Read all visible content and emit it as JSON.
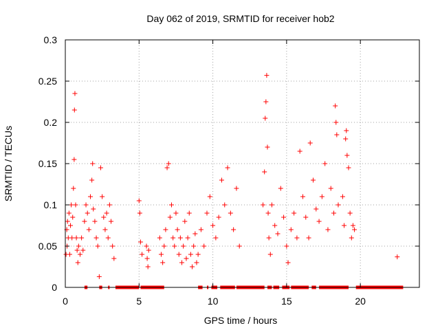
{
  "chart_data": {
    "type": "scatter",
    "title": "Day 062 of 2019, SRMTID for receiver hob2",
    "xlabel": "GPS time / hours",
    "ylabel": "SRMTID / TECUs",
    "xlim": [
      0,
      24
    ],
    "ylim": [
      0,
      0.3
    ],
    "grid": true,
    "marker": "+",
    "marker_color": "#ff0000",
    "x_ticks": [
      0,
      5,
      10,
      15,
      20
    ],
    "x_tick_labels": [
      "0",
      "5",
      "10",
      "15",
      "20"
    ],
    "y_ticks": [
      0,
      0.05,
      0.1,
      0.15,
      0.2,
      0.25,
      0.3
    ],
    "y_tick_labels": [
      "0",
      "0.05",
      "0.1",
      "0.15",
      "0.2",
      "0.25",
      "0.3"
    ],
    "series": [
      {
        "name": "SRMTID",
        "points": [
          [
            0.05,
            0.04
          ],
          [
            0.1,
            0.07
          ],
          [
            0.12,
            0.05
          ],
          [
            0.15,
            0.08
          ],
          [
            0.2,
            0.06
          ],
          [
            0.25,
            0.09
          ],
          [
            0.3,
            0.04
          ],
          [
            0.35,
            0.075
          ],
          [
            0.4,
            0.1
          ],
          [
            0.45,
            0.06
          ],
          [
            0.5,
            0.085
          ],
          [
            0.55,
            0.12
          ],
          [
            0.6,
            0.155
          ],
          [
            0.62,
            0.215
          ],
          [
            0.65,
            0.235
          ],
          [
            0.7,
            0.1
          ],
          [
            0.75,
            0.06
          ],
          [
            0.8,
            0.045
          ],
          [
            0.85,
            0.03
          ],
          [
            0.9,
            0.05
          ],
          [
            1.0,
            0.04
          ],
          [
            1.1,
            0.06
          ],
          [
            1.2,
            0.045
          ],
          [
            1.3,
            0.08
          ],
          [
            1.4,
            0.1
          ],
          [
            1.5,
            0.09
          ],
          [
            1.6,
            0.07
          ],
          [
            1.7,
            0.11
          ],
          [
            1.8,
            0.13
          ],
          [
            1.85,
            0.15
          ],
          [
            1.9,
            0.095
          ],
          [
            2.0,
            0.08
          ],
          [
            2.1,
            0.06
          ],
          [
            2.2,
            0.05
          ],
          [
            2.3,
            0.013
          ],
          [
            2.4,
            0.145
          ],
          [
            2.5,
            0.11
          ],
          [
            2.6,
            0.085
          ],
          [
            2.7,
            0.07
          ],
          [
            2.8,
            0.09
          ],
          [
            2.9,
            0.06
          ],
          [
            3.0,
            0.1
          ],
          [
            3.1,
            0.08
          ],
          [
            3.2,
            0.05
          ],
          [
            3.3,
            0.035
          ],
          [
            5.0,
            0.105
          ],
          [
            5.05,
            0.09
          ],
          [
            5.1,
            0.055
          ],
          [
            5.2,
            0.04
          ],
          [
            5.5,
            0.05
          ],
          [
            5.55,
            0.035
          ],
          [
            5.6,
            0.025
          ],
          [
            5.65,
            0.045
          ],
          [
            6.4,
            0.06
          ],
          [
            6.5,
            0.04
          ],
          [
            6.6,
            0.03
          ],
          [
            6.7,
            0.05
          ],
          [
            6.8,
            0.07
          ],
          [
            6.9,
            0.145
          ],
          [
            7.0,
            0.15
          ],
          [
            7.1,
            0.085
          ],
          [
            7.2,
            0.1
          ],
          [
            7.3,
            0.06
          ],
          [
            7.4,
            0.05
          ],
          [
            7.5,
            0.09
          ],
          [
            7.6,
            0.07
          ],
          [
            7.7,
            0.04
          ],
          [
            7.8,
            0.06
          ],
          [
            7.9,
            0.03
          ],
          [
            8.0,
            0.05
          ],
          [
            8.1,
            0.08
          ],
          [
            8.2,
            0.035
          ],
          [
            8.3,
            0.06
          ],
          [
            8.4,
            0.09
          ],
          [
            8.5,
            0.04
          ],
          [
            8.6,
            0.025
          ],
          [
            8.7,
            0.05
          ],
          [
            8.8,
            0.065
          ],
          [
            8.9,
            0.03
          ],
          [
            9.0,
            0.04
          ],
          [
            9.2,
            0.07
          ],
          [
            9.4,
            0.05
          ],
          [
            9.6,
            0.09
          ],
          [
            9.8,
            0.11
          ],
          [
            10.0,
            0.075
          ],
          [
            10.2,
            0.06
          ],
          [
            10.4,
            0.085
          ],
          [
            10.6,
            0.13
          ],
          [
            10.8,
            0.1
          ],
          [
            11.0,
            0.145
          ],
          [
            11.2,
            0.09
          ],
          [
            11.4,
            0.07
          ],
          [
            11.6,
            0.12
          ],
          [
            11.8,
            0.05
          ],
          [
            13.4,
            0.1
          ],
          [
            13.5,
            0.14
          ],
          [
            13.55,
            0.205
          ],
          [
            13.6,
            0.225
          ],
          [
            13.65,
            0.257
          ],
          [
            13.7,
            0.17
          ],
          [
            13.75,
            0.09
          ],
          [
            13.8,
            0.06
          ],
          [
            13.9,
            0.04
          ],
          [
            14.0,
            0.1
          ],
          [
            14.2,
            0.075
          ],
          [
            14.4,
            0.065
          ],
          [
            14.6,
            0.12
          ],
          [
            14.8,
            0.085
          ],
          [
            15.0,
            0.05
          ],
          [
            15.1,
            0.03
          ],
          [
            15.3,
            0.07
          ],
          [
            15.5,
            0.09
          ],
          [
            15.7,
            0.06
          ],
          [
            15.9,
            0.165
          ],
          [
            16.1,
            0.11
          ],
          [
            16.3,
            0.085
          ],
          [
            16.5,
            0.06
          ],
          [
            16.6,
            0.175
          ],
          [
            16.8,
            0.13
          ],
          [
            17.0,
            0.095
          ],
          [
            17.2,
            0.08
          ],
          [
            17.4,
            0.11
          ],
          [
            17.6,
            0.15
          ],
          [
            17.8,
            0.07
          ],
          [
            18.0,
            0.12
          ],
          [
            18.2,
            0.09
          ],
          [
            18.3,
            0.22
          ],
          [
            18.35,
            0.2
          ],
          [
            18.4,
            0.185
          ],
          [
            18.5,
            0.1
          ],
          [
            18.8,
            0.11
          ],
          [
            18.9,
            0.075
          ],
          [
            19.0,
            0.18
          ],
          [
            19.05,
            0.19
          ],
          [
            19.1,
            0.16
          ],
          [
            19.2,
            0.145
          ],
          [
            19.3,
            0.09
          ],
          [
            19.4,
            0.06
          ],
          [
            19.5,
            0.075
          ],
          [
            19.6,
            0.07
          ],
          [
            22.5,
            0.037
          ]
        ]
      }
    ],
    "zero_band_x": [
      [
        1.3,
        1.5
      ],
      [
        2.3,
        2.5
      ],
      [
        2.9,
        3.0
      ],
      [
        3.4,
        5.0
      ],
      [
        5.1,
        6.7
      ],
      [
        9.0,
        9.3
      ],
      [
        9.6,
        9.7
      ],
      [
        9.9,
        10.3
      ],
      [
        10.5,
        11.5
      ],
      [
        11.6,
        13.5
      ],
      [
        13.7,
        14.0
      ],
      [
        14.1,
        14.5
      ],
      [
        14.7,
        15.2
      ],
      [
        15.3,
        16.5
      ],
      [
        16.7,
        17.0
      ],
      [
        17.2,
        19.2
      ],
      [
        19.7,
        22.9
      ]
    ]
  }
}
